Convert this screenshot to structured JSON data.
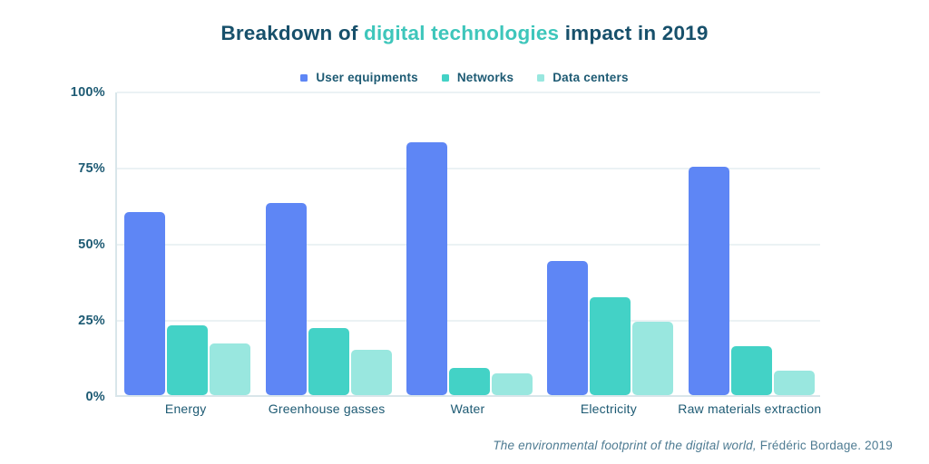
{
  "title": {
    "prefix": "Breakdown of ",
    "highlight": "digital technologies",
    "suffix": " impact in 2019"
  },
  "colors": {
    "title_dark": "#17506b",
    "title_highlight": "#3ec6bb",
    "axis_text": "#1d5a73",
    "gridline": "#ebf2f4",
    "axis_line": "#d9e6ea",
    "footer_text": "#4e7b92",
    "user_equipments": "#5e86f5",
    "networks": "#43d2c6",
    "data_centers": "#99e7df"
  },
  "legend": [
    {
      "label": "User equipments",
      "color": "#5e86f5"
    },
    {
      "label": "Networks",
      "color": "#43d2c6"
    },
    {
      "label": "Data centers",
      "color": "#99e7df"
    }
  ],
  "chart_data": {
    "type": "bar",
    "title": "Breakdown of digital technologies impact in 2019",
    "categories": [
      "Energy",
      "Greenhouse gasses",
      "Water",
      "Electricity",
      "Raw materials extraction"
    ],
    "series": [
      {
        "name": "User equipments",
        "color": "#5e86f5",
        "values": [
          60,
          63,
          83,
          44,
          75
        ]
      },
      {
        "name": "Networks",
        "color": "#43d2c6",
        "values": [
          23,
          22,
          9,
          32,
          16
        ]
      },
      {
        "name": "Data centers",
        "color": "#99e7df",
        "values": [
          17,
          15,
          7,
          24,
          8
        ]
      }
    ],
    "xlabel": "",
    "ylabel": "",
    "ylim": [
      0,
      100
    ],
    "yticks": [
      "0%",
      "25%",
      "50%",
      "75%",
      "100%"
    ],
    "grid": true,
    "legend_position": "top"
  },
  "footer": {
    "source_italic": "The environmental footprint of the digital world,",
    "source_regular": " Frédéric Bordage. 2019"
  }
}
